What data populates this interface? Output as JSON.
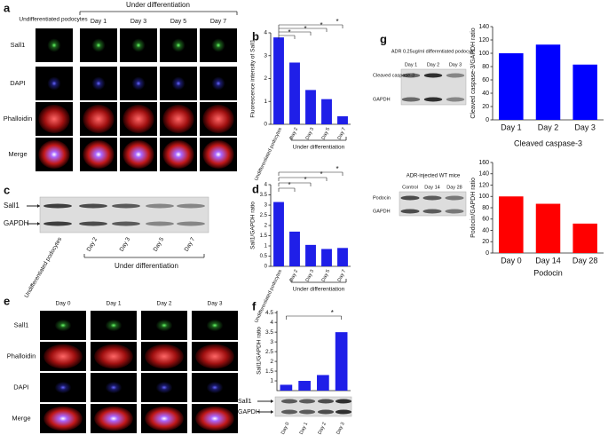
{
  "panels": {
    "a": {
      "letter": "a",
      "header_left": "Undifferentiated podocytes",
      "header_right": "Under differentiation",
      "columns": [
        "Day 1",
        "Day 3",
        "Day 5",
        "Day 7"
      ],
      "rows": [
        "Sall1",
        "DAPI",
        "Phalloidin",
        "Merge"
      ]
    },
    "b": {
      "letter": "b"
    },
    "c": {
      "letter": "c",
      "bands": [
        "Sall1",
        "GAPDH"
      ],
      "lanes": [
        "Undifferentiated podocytes",
        "Day 2",
        "Day 3",
        "Day 5",
        "Day 7"
      ],
      "group_label": "Under differentiation"
    },
    "d": {
      "letter": "d"
    },
    "e": {
      "letter": "e",
      "columns": [
        "Day 0",
        "Day 1",
        "Day 2",
        "Day 3"
      ],
      "rows": [
        "Sall1",
        "Phalloidin",
        "DAPI",
        "Merge"
      ]
    },
    "f": {
      "letter": "f",
      "bands": [
        "Sall1",
        "GAPDH"
      ]
    },
    "g": {
      "letter": "g",
      "blot1": {
        "title": "ADR 0.25ug/ml differentiated podocyte",
        "lanes": [
          "Day 1",
          "Day 2",
          "Day 3"
        ],
        "bands": [
          "Cleaved caspase-3",
          "GAPDH"
        ]
      },
      "blot2": {
        "title": "ADR-injected WT mice",
        "lanes": [
          "Control",
          "Day 14",
          "Day 28"
        ],
        "bands": [
          "Podocin",
          "GAPDH"
        ]
      }
    }
  },
  "chart_data": [
    {
      "type": "bar",
      "ylabel": "Fluorescence intensity of Sall1",
      "xlabel": "Under differentiation",
      "categories": [
        "Undifferentiated podocytes",
        "Day 2",
        "Day 3",
        "Day 5",
        "Day 7"
      ],
      "values": [
        3.8,
        2.7,
        1.5,
        1.1,
        0.35
      ],
      "color": "#1f1fe8",
      "ylim": [
        0,
        4
      ],
      "yticks": [
        0,
        1,
        2,
        3,
        4
      ],
      "annotations": [
        "*",
        "*",
        "*",
        "*"
      ]
    },
    {
      "type": "bar",
      "ylabel": "Sall1/GAPDH ratio",
      "xlabel": "Under differentiation",
      "categories": [
        "Undifferentiated podocytes",
        "Day 2",
        "Day 3",
        "Day 5",
        "Day 7"
      ],
      "values": [
        3.15,
        1.7,
        1.05,
        0.85,
        0.9
      ],
      "color": "#1f1fe8",
      "ylim": [
        0,
        4
      ],
      "yticks": [
        0,
        0.5,
        1,
        1.5,
        2,
        2.5,
        3,
        3.5,
        4
      ],
      "annotations": [
        "*",
        "*",
        "*",
        "*"
      ]
    },
    {
      "type": "bar",
      "ylabel": "Sall1/GAPDH ratio",
      "categories": [
        "Day 0",
        "Day 1",
        "Day 2",
        "Day 3"
      ],
      "values": [
        0.8,
        1.0,
        1.3,
        3.5
      ],
      "color": "#1f1fe8",
      "ylim": [
        0.5,
        4.6
      ],
      "yticks": [
        1,
        1.5,
        2,
        2.5,
        3,
        3.5,
        4,
        4.5
      ],
      "annotations": [
        "*"
      ]
    },
    {
      "type": "bar",
      "ylabel": "Cleaved caspase-3/GAPDH ratio",
      "xlabel": "Cleaved caspase-3",
      "categories": [
        "Day 1",
        "Day 2",
        "Day 3"
      ],
      "values": [
        100,
        113,
        83
      ],
      "color": "#0000ff",
      "ylim": [
        0,
        140
      ],
      "yticks": [
        0,
        20,
        40,
        60,
        80,
        100,
        120,
        140
      ]
    },
    {
      "type": "bar",
      "ylabel": "Podocin/GAPDH ratio",
      "xlabel": "Podocin",
      "categories": [
        "Day 0",
        "Day 14",
        "Day 28"
      ],
      "values": [
        100,
        87,
        52
      ],
      "color": "#ff0000",
      "ylim": [
        0,
        160
      ],
      "yticks": [
        0,
        20,
        40,
        60,
        80,
        100,
        120,
        140,
        160
      ]
    }
  ]
}
